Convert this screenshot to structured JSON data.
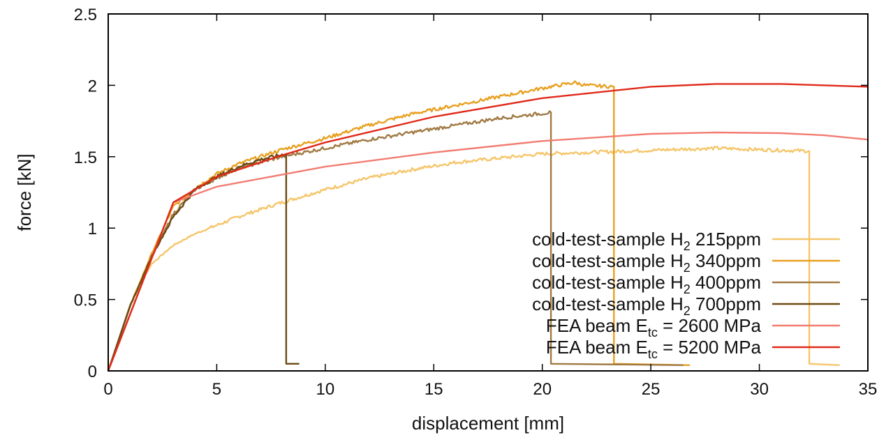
{
  "chart_data": {
    "type": "line",
    "title": "",
    "xlabel": "displacement [mm]",
    "ylabel": "force [kN]",
    "xlim": [
      0,
      35
    ],
    "ylim": [
      0,
      2.5
    ],
    "xticks": [
      0,
      5,
      10,
      15,
      20,
      25,
      30,
      35
    ],
    "xtick_labels": [
      "0",
      "5",
      "10",
      "15",
      "20",
      "25",
      "30",
      "35"
    ],
    "yticks": [
      0,
      0.5,
      1,
      1.5,
      2,
      2.5
    ],
    "ytick_labels": [
      "0",
      "0.5",
      "1",
      "1.5",
      "2",
      "2.5"
    ],
    "grid": false,
    "legend_position": "bottom-right",
    "series": [
      {
        "legend": {
          "pre": "cold-test-sample H",
          "sub": "2",
          "post": " 215ppm"
        },
        "color": "#f5c66a",
        "noisy": true,
        "points": [
          [
            0,
            0
          ],
          [
            1,
            0.45
          ],
          [
            1.5,
            0.62
          ],
          [
            2,
            0.75
          ],
          [
            3,
            0.88
          ],
          [
            4,
            0.96
          ],
          [
            5,
            1.02
          ],
          [
            6,
            1.08
          ],
          [
            8,
            1.18
          ],
          [
            10,
            1.27
          ],
          [
            12,
            1.35
          ],
          [
            14,
            1.41
          ],
          [
            16,
            1.46
          ],
          [
            18,
            1.49
          ],
          [
            20,
            1.52
          ],
          [
            22,
            1.53
          ],
          [
            24,
            1.54
          ],
          [
            26,
            1.55
          ],
          [
            28,
            1.56
          ],
          [
            30,
            1.55
          ],
          [
            32.3,
            1.54
          ],
          [
            32.3,
            0.05
          ],
          [
            33.7,
            0.04
          ]
        ]
      },
      {
        "legend": {
          "pre": "cold-test-sample H",
          "sub": "2",
          "post": " 340ppm"
        },
        "color": "#e8a020",
        "noisy": true,
        "points": [
          [
            0,
            0
          ],
          [
            1,
            0.45
          ],
          [
            2,
            0.82
          ],
          [
            3,
            1.15
          ],
          [
            4,
            1.28
          ],
          [
            5,
            1.38
          ],
          [
            6,
            1.45
          ],
          [
            8,
            1.55
          ],
          [
            10,
            1.63
          ],
          [
            12,
            1.72
          ],
          [
            14,
            1.8
          ],
          [
            16,
            1.86
          ],
          [
            18,
            1.92
          ],
          [
            20,
            1.98
          ],
          [
            21.5,
            2.02
          ],
          [
            22,
            2.0
          ],
          [
            23.3,
            1.99
          ],
          [
            23.3,
            0.05
          ],
          [
            26.8,
            0.04
          ]
        ]
      },
      {
        "legend": {
          "pre": "cold-test-sample H",
          "sub": "2",
          "post": " 400ppm"
        },
        "color": "#a07a44",
        "noisy": true,
        "points": [
          [
            0,
            0
          ],
          [
            1,
            0.45
          ],
          [
            2,
            0.8
          ],
          [
            3,
            1.1
          ],
          [
            4,
            1.27
          ],
          [
            5,
            1.35
          ],
          [
            6,
            1.42
          ],
          [
            8,
            1.5
          ],
          [
            10,
            1.56
          ],
          [
            12,
            1.62
          ],
          [
            14,
            1.67
          ],
          [
            16,
            1.72
          ],
          [
            18,
            1.77
          ],
          [
            20.4,
            1.81
          ],
          [
            20.4,
            0.05
          ],
          [
            26.5,
            0.04
          ]
        ]
      },
      {
        "legend": {
          "pre": "cold-test-sample H",
          "sub": "2",
          "post": " 700ppm"
        },
        "color": "#6b4a12",
        "noisy": true,
        "points": [
          [
            0,
            0
          ],
          [
            1,
            0.45
          ],
          [
            2,
            0.8
          ],
          [
            3,
            1.08
          ],
          [
            4,
            1.27
          ],
          [
            5,
            1.36
          ],
          [
            6,
            1.43
          ],
          [
            7,
            1.48
          ],
          [
            8.2,
            1.52
          ],
          [
            8.2,
            0.05
          ],
          [
            8.8,
            0.05
          ]
        ]
      },
      {
        "legend": {
          "pre": "FEA beam E",
          "sub": "tc",
          "post": " = 2600 MPa"
        },
        "color": "#f27c72",
        "noisy": false,
        "points": [
          [
            0,
            0
          ],
          [
            3,
            1.18
          ],
          [
            5,
            1.29
          ],
          [
            10,
            1.43
          ],
          [
            15,
            1.53
          ],
          [
            20,
            1.61
          ],
          [
            25,
            1.66
          ],
          [
            28,
            1.67
          ],
          [
            31,
            1.665
          ],
          [
            33,
            1.65
          ],
          [
            35,
            1.62
          ]
        ]
      },
      {
        "legend": {
          "pre": "FEA beam E",
          "sub": "tc",
          "post": " = 5200 MPa"
        },
        "color": "#e02a1a",
        "noisy": false,
        "points": [
          [
            0,
            0
          ],
          [
            3,
            1.18
          ],
          [
            5,
            1.36
          ],
          [
            8,
            1.51
          ],
          [
            10,
            1.6
          ],
          [
            15,
            1.78
          ],
          [
            20,
            1.91
          ],
          [
            25,
            1.99
          ],
          [
            28,
            2.01
          ],
          [
            31,
            2.01
          ],
          [
            33,
            2.0
          ],
          [
            35,
            1.99
          ]
        ]
      }
    ]
  }
}
